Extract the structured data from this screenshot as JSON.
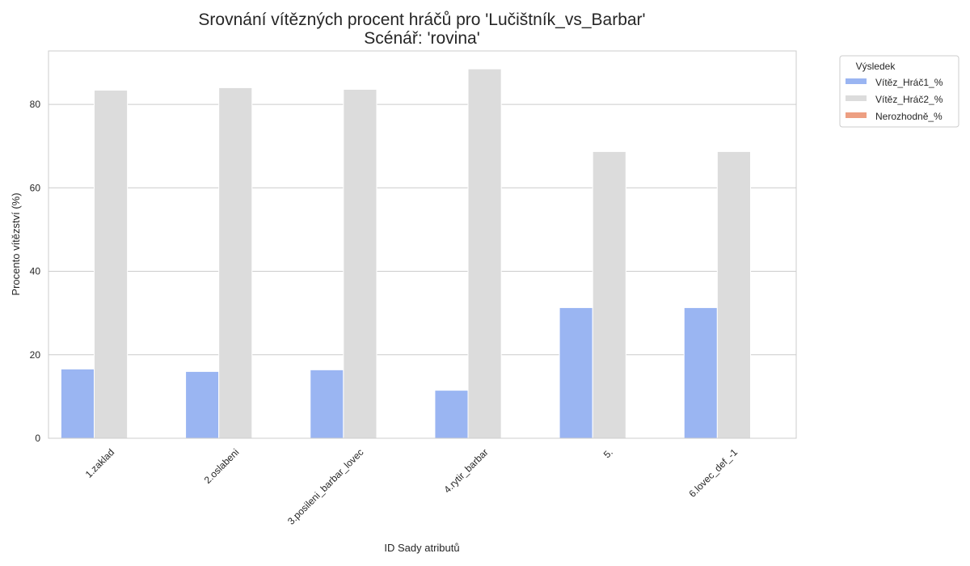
{
  "chart_data": {
    "type": "bar",
    "title": "Srovnání vítězných procent hráčů pro 'Lučištník_vs_Barbar'",
    "subtitle": "Scénář: 'rovina'",
    "xlabel": "ID Sady atributů",
    "ylabel": "Procento vítězství (%)",
    "ylim": [
      0,
      92.8
    ],
    "yticks": [
      "0",
      "20",
      "40",
      "60",
      "80"
    ],
    "grid": true,
    "legend_title": "Výsledek",
    "legend_position": "outside-top-right",
    "categories": [
      "1.zaklad",
      "2.oslabeni",
      "3.posileni_barbar_lovec",
      "4.rytir_barbar",
      "5.",
      "6.lovec_def_-1"
    ],
    "series": [
      {
        "name": "Vítěz_Hráč1_%",
        "color": "#9ab5f2",
        "values": [
          16.6,
          16.0,
          16.4,
          11.5,
          31.3,
          31.3
        ]
      },
      {
        "name": "Vítěz_Hráč2_%",
        "color": "#dcdcdc",
        "values": [
          83.4,
          84.0,
          83.6,
          88.5,
          68.7,
          68.7
        ]
      },
      {
        "name": "Nerozhodně_%",
        "color": "#ed9f82",
        "values": [
          0,
          0,
          0,
          0,
          0,
          0
        ]
      }
    ]
  }
}
